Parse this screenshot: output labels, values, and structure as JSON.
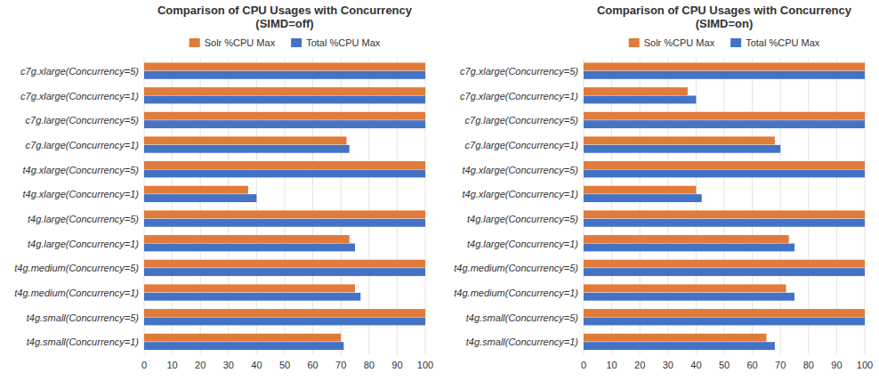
{
  "chart_data": [
    {
      "type": "bar",
      "orientation": "horizontal",
      "title": "Comparison of CPU Usages with Concurrency\n(SIMD=off)",
      "categories": [
        "c7g.xlarge(Concurrency=5)",
        "c7g.xlarge(Concurrency=1)",
        "c7g.large(Concurrency=5)",
        "c7g.large(Concurrency=1)",
        "t4g.xlarge(Concurrency=5)",
        "t4g.xlarge(Concurrency=1)",
        "t4g.large(Concurrency=5)",
        "t4g.large(Concurrency=1)",
        "t4g.medium(Concurrency=5)",
        "t4g.medium(Concurrency=1)",
        "t4g.small(Concurrency=5)",
        "t4g.small(Concurrency=1)"
      ],
      "series": [
        {
          "name": "Solr %CPU Max",
          "color": "#E07B39",
          "values": [
            100,
            100,
            100,
            72,
            100,
            37,
            100,
            73,
            100,
            75,
            100,
            70
          ]
        },
        {
          "name": "Total %CPU Max",
          "color": "#4472C4",
          "values": [
            100,
            100,
            100,
            73,
            100,
            40,
            100,
            75,
            100,
            77,
            100,
            71
          ]
        }
      ],
      "xlim": [
        0,
        100
      ],
      "xticks": [
        0,
        10,
        20,
        30,
        40,
        50,
        60,
        70,
        80,
        90,
        100
      ],
      "grid": true,
      "legend": "top"
    },
    {
      "type": "bar",
      "orientation": "horizontal",
      "title": "Comparison of CPU Usages with Concurrency\n(SIMD=on)",
      "categories": [
        "c7g.xlarge(Concurrency=5)",
        "c7g.xlarge(Concurrency=1)",
        "c7g.large(Concurrency=5)",
        "c7g.large(Concurrency=1)",
        "t4g.xlarge(Concurrency=5)",
        "t4g.xlarge(Concurrency=1)",
        "t4g.large(Concurrency=5)",
        "t4g.large(Concurrency=1)",
        "t4g.medium(Concurrency=5)",
        "t4g.medium(Concurrency=1)",
        "t4g.small(Concurrency=5)",
        "t4g.small(Concurrency=1)"
      ],
      "series": [
        {
          "name": "Solr %CPU Max",
          "color": "#E07B39",
          "values": [
            100,
            37,
            100,
            68,
            100,
            40,
            100,
            73,
            100,
            72,
            100,
            65
          ]
        },
        {
          "name": "Total %CPU Max",
          "color": "#4472C4",
          "values": [
            100,
            40,
            100,
            70,
            100,
            42,
            100,
            75,
            100,
            75,
            100,
            68
          ]
        }
      ],
      "xlim": [
        0,
        100
      ],
      "xticks": [
        0,
        10,
        20,
        30,
        40,
        50,
        60,
        70,
        80,
        90,
        100
      ],
      "grid": true,
      "legend": "top"
    }
  ]
}
